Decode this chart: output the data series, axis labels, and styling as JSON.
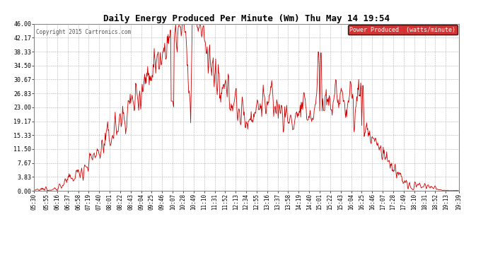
{
  "title": "Daily Energy Produced Per Minute (Wm) Thu May 14 19:54",
  "copyright": "Copyright 2015 Cartronics.com",
  "legend_label": "Power Produced  (watts/minute)",
  "legend_bg": "#cc0000",
  "legend_fg": "#ffffff",
  "line_color": "#cc0000",
  "background_color": "#ffffff",
  "grid_color": "#aaaaaa",
  "title_color": "#000000",
  "ymin": 0.0,
  "ymax": 46.0,
  "yticks": [
    0.0,
    3.83,
    7.67,
    11.5,
    15.33,
    19.17,
    23.0,
    26.83,
    30.67,
    34.5,
    38.33,
    42.17,
    46.0
  ],
  "xtick_labels": [
    "05:30",
    "05:55",
    "06:16",
    "06:37",
    "06:58",
    "07:19",
    "07:40",
    "08:01",
    "08:22",
    "08:43",
    "09:04",
    "09:25",
    "09:46",
    "10:07",
    "10:28",
    "10:49",
    "11:10",
    "11:31",
    "11:52",
    "12:13",
    "12:34",
    "12:55",
    "13:16",
    "13:37",
    "13:58",
    "14:19",
    "14:40",
    "15:01",
    "15:22",
    "15:43",
    "16:04",
    "16:25",
    "16:46",
    "17:07",
    "17:28",
    "17:49",
    "18:10",
    "18:31",
    "18:52",
    "19:13",
    "19:39"
  ],
  "start_time": "05:30",
  "end_time": "19:39"
}
